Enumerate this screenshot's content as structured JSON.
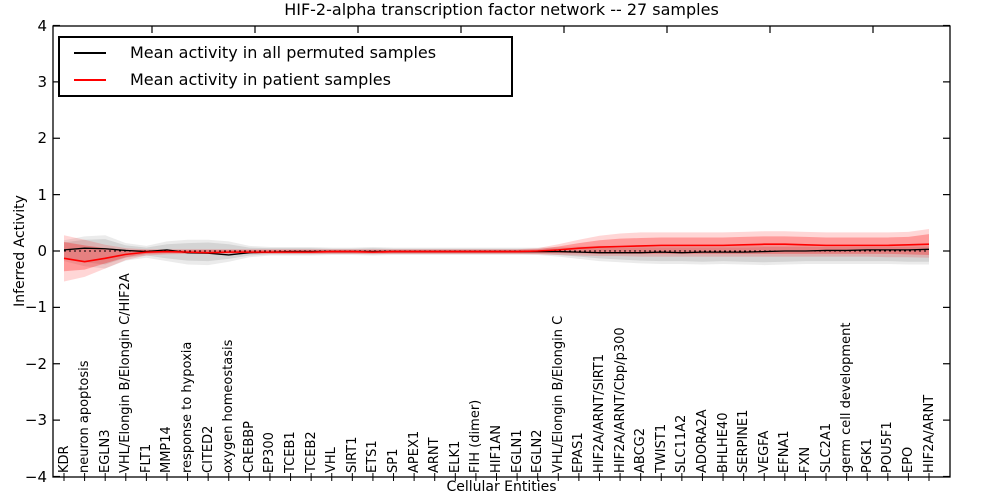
{
  "chart_data": {
    "type": "line",
    "title": "HIF-2-alpha transcription factor network -- 27 samples",
    "xlabel": "Cellular Entities",
    "ylabel": "Inferred Activity",
    "ylim": [
      -4,
      4
    ],
    "yticks": [
      4,
      3,
      2,
      1,
      0,
      -1,
      -2,
      -3,
      -4
    ],
    "grid": false,
    "legend_position": "upper left",
    "categories": [
      "KDR",
      "neuron apoptosis",
      "EGLN3",
      "VHL/Elongin B/Elongin C/HIF2A",
      "FLT1",
      "MMP14",
      "response to hypoxia",
      "CITED2",
      "oxygen homeostasis",
      "CREBBP",
      "EP300",
      "TCEB1",
      "TCEB2",
      "VHL",
      "SIRT1",
      "ETS1",
      "SP1",
      "APEX1",
      "ARNT",
      "ELK1",
      "FIH (dimer)",
      "HIF1AN",
      "EGLN1",
      "EGLN2",
      "VHL/Elongin B/Elongin C",
      "EPAS1",
      "HIF2A/ARNT/SIRT1",
      "HIF2A/ARNT/Cbp/p300",
      "ABCG2",
      "TWIST1",
      "SLC11A2",
      "ADORA2A",
      "BHLHE40",
      "SERPINE1",
      "VEGFA",
      "EFNA1",
      "FXN",
      "SLC2A1",
      "germ cell development",
      "PGK1",
      "POU5F1",
      "EPO",
      "HIF2A/ARNT"
    ],
    "series": [
      {
        "name": "Mean activity in all permuted samples",
        "color": "#000000",
        "values": [
          0.02,
          0.05,
          0.04,
          0.01,
          -0.01,
          0.02,
          -0.03,
          -0.04,
          -0.07,
          -0.03,
          -0.02,
          -0.01,
          -0.01,
          -0.01,
          -0.01,
          -0.01,
          -0.01,
          -0.01,
          -0.01,
          -0.01,
          -0.01,
          -0.01,
          -0.01,
          -0.01,
          -0.01,
          -0.02,
          -0.03,
          -0.03,
          -0.03,
          -0.02,
          -0.03,
          -0.02,
          -0.02,
          -0.02,
          -0.01,
          0,
          0,
          0.01,
          0.01,
          0.02,
          0.02,
          0.02,
          0.03
        ]
      },
      {
        "name": "Mean activity in patient samples",
        "color": "#ff0000",
        "values": [
          -0.13,
          -0.19,
          -0.13,
          -0.06,
          -0.02,
          -0.01,
          -0.02,
          -0.03,
          -0.02,
          -0.02,
          -0.02,
          -0.02,
          -0.02,
          -0.01,
          -0.01,
          -0.02,
          -0.01,
          -0.01,
          -0.01,
          -0.01,
          -0.01,
          -0.01,
          -0.01,
          0,
          0.02,
          0.05,
          0.07,
          0.08,
          0.09,
          0.1,
          0.1,
          0.1,
          0.1,
          0.11,
          0.12,
          0.12,
          0.11,
          0.1,
          0.1,
          0.1,
          0.1,
          0.11,
          0.12
        ]
      }
    ],
    "bands": [
      {
        "name": "permuted-outer-band",
        "fill": "rgba(130,130,130,0.16)",
        "upper": [
          0.19,
          0.26,
          0.28,
          0.14,
          0.09,
          0.17,
          0.2,
          0.2,
          0.17,
          0.09,
          0.07,
          0.07,
          0.07,
          0.06,
          0.06,
          0.07,
          0.06,
          0.06,
          0.06,
          0.06,
          0.06,
          0.06,
          0.06,
          0.06,
          0.07,
          0.08,
          0.09,
          0.09,
          0.09,
          0.09,
          0.09,
          0.09,
          0.09,
          0.09,
          0.1,
          0.1,
          0.1,
          0.1,
          0.09,
          0.09,
          0.09,
          0.1,
          0.1
        ],
        "lower": [
          -0.18,
          -0.27,
          -0.31,
          -0.17,
          -0.12,
          -0.18,
          -0.24,
          -0.25,
          -0.19,
          -0.11,
          -0.08,
          -0.08,
          -0.08,
          -0.07,
          -0.07,
          -0.08,
          -0.07,
          -0.07,
          -0.07,
          -0.07,
          -0.07,
          -0.07,
          -0.07,
          -0.07,
          -0.1,
          -0.14,
          -0.18,
          -0.2,
          -0.22,
          -0.23,
          -0.23,
          -0.24,
          -0.23,
          -0.24,
          -0.25,
          -0.24,
          -0.23,
          -0.23,
          -0.23,
          -0.23,
          -0.23,
          -0.24,
          -0.24
        ]
      },
      {
        "name": "permuted-inner-band",
        "fill": "rgba(130,130,130,0.22)",
        "upper": [
          0.15,
          0.2,
          0.21,
          0.1,
          0.06,
          0.12,
          0.14,
          0.15,
          0.12,
          0.06,
          0.05,
          0.05,
          0.05,
          0.04,
          0.04,
          0.05,
          0.04,
          0.04,
          0.04,
          0.04,
          0.04,
          0.04,
          0.04,
          0.04,
          0.05,
          0.05,
          0.06,
          0.06,
          0.06,
          0.06,
          0.06,
          0.06,
          0.06,
          0.06,
          0.07,
          0.07,
          0.07,
          0.07,
          0.07,
          0.07,
          0.07,
          0.07,
          0.08
        ],
        "lower": [
          -0.14,
          -0.2,
          -0.24,
          -0.12,
          -0.08,
          -0.13,
          -0.17,
          -0.18,
          -0.14,
          -0.08,
          -0.06,
          -0.06,
          -0.06,
          -0.05,
          -0.05,
          -0.06,
          -0.05,
          -0.05,
          -0.05,
          -0.05,
          -0.05,
          -0.05,
          -0.05,
          -0.05,
          -0.07,
          -0.1,
          -0.13,
          -0.15,
          -0.17,
          -0.18,
          -0.18,
          -0.19,
          -0.18,
          -0.19,
          -0.2,
          -0.19,
          -0.18,
          -0.18,
          -0.18,
          -0.18,
          -0.18,
          -0.19,
          -0.19
        ]
      },
      {
        "name": "patient-outer-band",
        "fill": "rgba(255,0,0,0.16)",
        "upper": [
          0.28,
          0.2,
          0.11,
          0.05,
          0.03,
          0.03,
          0.03,
          0.03,
          0.03,
          0.03,
          0.03,
          0.03,
          0.03,
          0.03,
          0.03,
          0.03,
          0.03,
          0.03,
          0.03,
          0.03,
          0.03,
          0.03,
          0.03,
          0.05,
          0.12,
          0.2,
          0.27,
          0.31,
          0.33,
          0.33,
          0.33,
          0.33,
          0.33,
          0.34,
          0.35,
          0.35,
          0.34,
          0.33,
          0.33,
          0.33,
          0.33,
          0.34,
          0.39
        ],
        "lower": [
          -0.54,
          -0.46,
          -0.31,
          -0.16,
          -0.08,
          -0.06,
          -0.05,
          -0.05,
          -0.05,
          -0.05,
          -0.05,
          -0.05,
          -0.05,
          -0.05,
          -0.05,
          -0.05,
          -0.05,
          -0.05,
          -0.05,
          -0.05,
          -0.05,
          -0.05,
          -0.05,
          -0.06,
          -0.07,
          -0.08,
          -0.09,
          -0.09,
          -0.1,
          -0.1,
          -0.1,
          -0.1,
          -0.1,
          -0.1,
          -0.1,
          -0.1,
          -0.1,
          -0.1,
          -0.1,
          -0.1,
          -0.11,
          -0.11,
          -0.12
        ]
      },
      {
        "name": "patient-inner-band",
        "fill": "rgba(255,0,0,0.28)",
        "upper": [
          0.16,
          0.1,
          0.05,
          0.02,
          0.02,
          0.02,
          0.02,
          0.02,
          0.02,
          0.02,
          0.02,
          0.02,
          0.02,
          0.02,
          0.02,
          0.02,
          0.02,
          0.02,
          0.02,
          0.02,
          0.02,
          0.02,
          0.02,
          0.03,
          0.08,
          0.14,
          0.19,
          0.22,
          0.23,
          0.24,
          0.24,
          0.24,
          0.24,
          0.25,
          0.26,
          0.26,
          0.25,
          0.24,
          0.24,
          0.24,
          0.24,
          0.25,
          0.3
        ],
        "lower": [
          -0.36,
          -0.33,
          -0.22,
          -0.11,
          -0.05,
          -0.04,
          -0.04,
          -0.04,
          -0.04,
          -0.04,
          -0.04,
          -0.04,
          -0.04,
          -0.04,
          -0.04,
          -0.04,
          -0.04,
          -0.04,
          -0.04,
          -0.04,
          -0.04,
          -0.04,
          -0.04,
          -0.04,
          -0.04,
          -0.04,
          -0.05,
          -0.05,
          -0.05,
          -0.05,
          -0.05,
          -0.05,
          -0.05,
          -0.05,
          -0.05,
          -0.05,
          -0.05,
          -0.05,
          -0.05,
          -0.05,
          -0.05,
          -0.06,
          -0.07
        ]
      }
    ],
    "zero_line": {
      "value": 0,
      "style": "dashed",
      "color": "#000000"
    }
  }
}
